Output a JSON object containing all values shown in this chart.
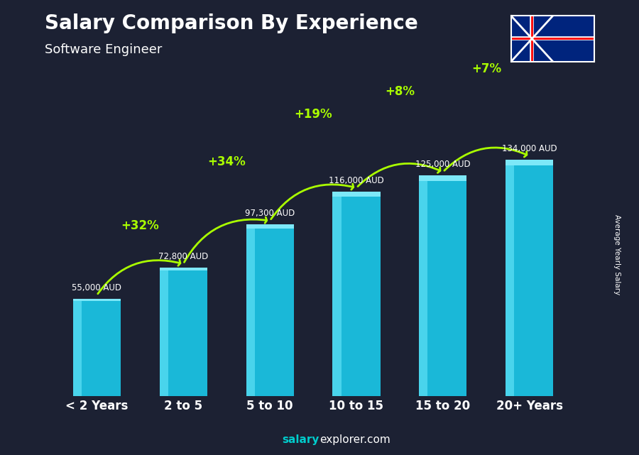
{
  "categories": [
    "< 2 Years",
    "2 to 5",
    "5 to 10",
    "10 to 15",
    "15 to 20",
    "20+ Years"
  ],
  "values": [
    55000,
    72800,
    97300,
    116000,
    125000,
    134000
  ],
  "value_labels": [
    "55,000 AUD",
    "72,800 AUD",
    "97,300 AUD",
    "116,000 AUD",
    "125,000 AUD",
    "134,000 AUD"
  ],
  "pct_changes": [
    null,
    "+32%",
    "+34%",
    "+19%",
    "+8%",
    "+7%"
  ],
  "title": "Salary Comparison By Experience",
  "subtitle": "Software Engineer",
  "ylabel": "Average Yearly Salary",
  "footer": "salaryexplorer.com",
  "footer_bold": "salary",
  "bar_color_top": "#00d4ff",
  "bar_color_bottom": "#0077aa",
  "background_color": "#1a1a2e",
  "text_color_white": "#ffffff",
  "text_color_green": "#aaff00",
  "ylim": [
    0,
    160000
  ],
  "figsize": [
    9.0,
    6.41
  ],
  "dpi": 100
}
